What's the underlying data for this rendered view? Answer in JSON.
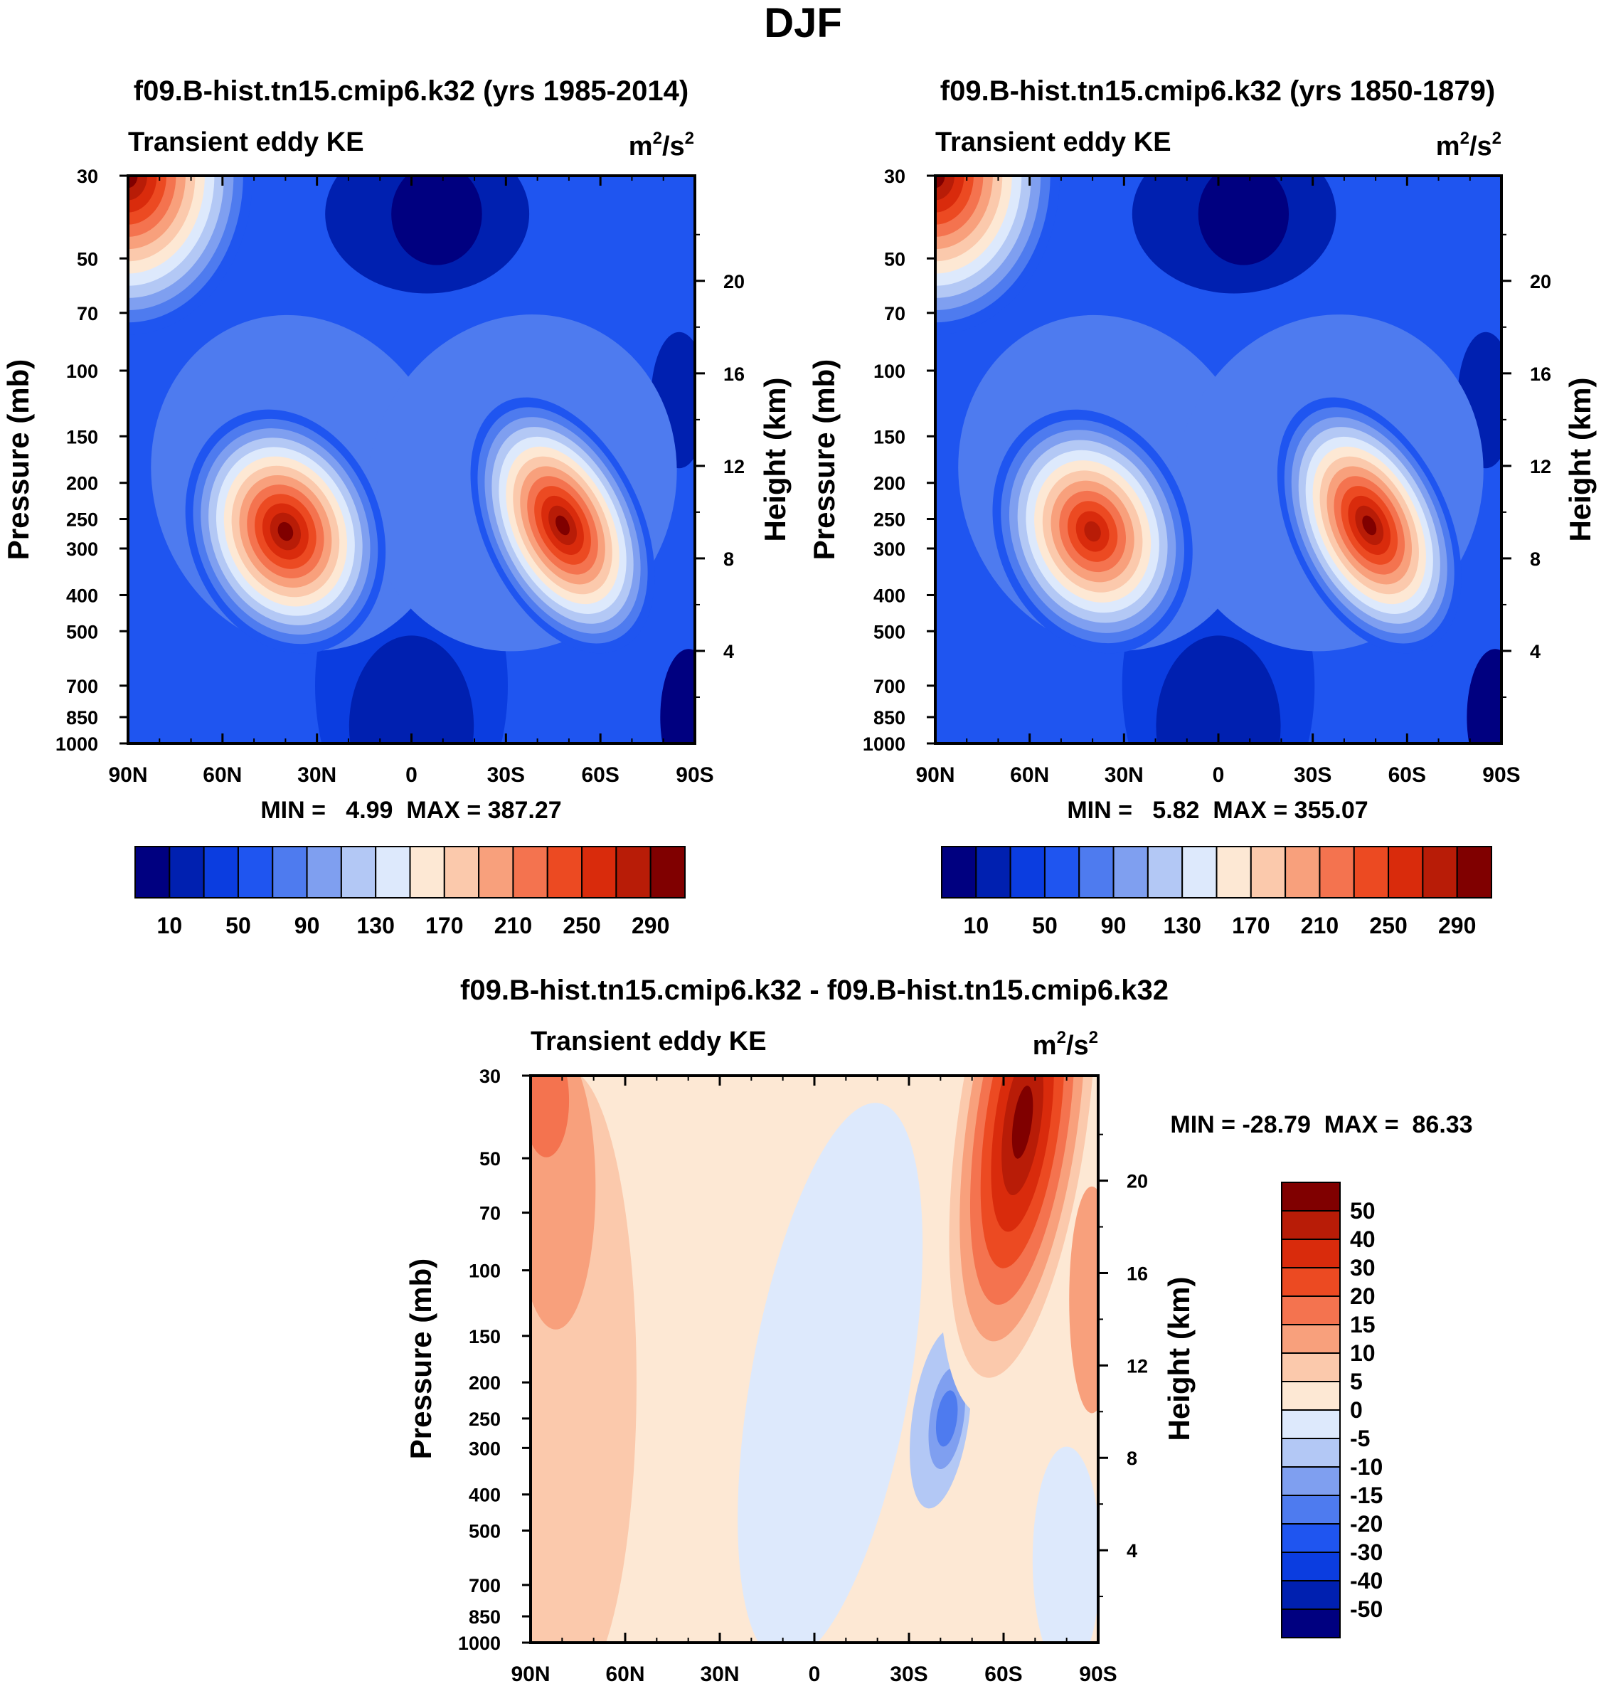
{
  "figure_title": "DJF",
  "colors": {
    "ke_scale": [
      "#000080",
      "#0020b0",
      "#0b3de0",
      "#1f55f0",
      "#4e7bef",
      "#7f9ff0",
      "#b3c8f5",
      "#dde9fc",
      "#fde8d4",
      "#fbc9ac",
      "#f8a07c",
      "#f4734f",
      "#ec4a22",
      "#d92b0c",
      "#b81c07",
      "#800000"
    ],
    "diff_scale": [
      "#000080",
      "#0020b0",
      "#0b3de0",
      "#1f55f0",
      "#4e7bef",
      "#7f9ff0",
      "#b3c8f5",
      "#dde9fc",
      "#fde8d4",
      "#fbc9ac",
      "#f8a07c",
      "#f4734f",
      "#ec4a22",
      "#d92b0c",
      "#b81c07",
      "#800000"
    ]
  },
  "chart_data": [
    {
      "id": "panel1",
      "type": "contour",
      "title": "f09.B-hist.tn15.cmip6.k32 (yrs 1985-2014)",
      "left_label": "Transient eddy KE",
      "units_base": "m",
      "units_mid": "/s",
      "units_exp": "2",
      "ylabel": "Pressure (mb)",
      "ylabel_right": "Height (km)",
      "x_ticks": [
        "90N",
        "60N",
        "30N",
        "0",
        "30S",
        "60S",
        "90S"
      ],
      "y_ticks": [
        "30",
        "50",
        "70",
        "100",
        "150",
        "200",
        "250",
        "300",
        "400",
        "500",
        "700",
        "850",
        "1000"
      ],
      "y_ticks_right": [
        "20",
        "16",
        "12",
        "8",
        "4"
      ],
      "stats": "MIN =   4.99  MAX = 387.27",
      "min": 4.99,
      "max": 387.27,
      "colorbar": {
        "orientation": "horizontal",
        "labels": [
          "10",
          "50",
          "90",
          "130",
          "170",
          "210",
          "250",
          "290"
        ]
      },
      "features": [
        {
          "lat": -40,
          "p": 270,
          "peak": 320
        },
        {
          "lat": 50,
          "p": 250,
          "peak": 387
        },
        {
          "lat": -85,
          "p": 30,
          "peak": 310
        }
      ]
    },
    {
      "id": "panel2",
      "type": "contour",
      "title": "f09.B-hist.tn15.cmip6.k32 (yrs 1850-1879)",
      "left_label": "Transient eddy KE",
      "units_base": "m",
      "units_mid": "/s",
      "units_exp": "2",
      "ylabel": "Pressure (mb)",
      "ylabel_right": "Height (km)",
      "x_ticks": [
        "90N",
        "60N",
        "30N",
        "0",
        "30S",
        "60S",
        "90S"
      ],
      "y_ticks": [
        "30",
        "50",
        "70",
        "100",
        "150",
        "200",
        "250",
        "300",
        "400",
        "500",
        "700",
        "850",
        "1000"
      ],
      "y_ticks_right": [
        "20",
        "16",
        "12",
        "8",
        "4"
      ],
      "stats": "MIN =   5.82  MAX = 355.07",
      "min": 5.82,
      "max": 355.07,
      "colorbar": {
        "orientation": "horizontal",
        "labels": [
          "10",
          "50",
          "90",
          "130",
          "170",
          "210",
          "250",
          "290"
        ]
      },
      "features": [
        {
          "lat": -40,
          "p": 270,
          "peak": 300
        },
        {
          "lat": 50,
          "p": 260,
          "peak": 355
        },
        {
          "lat": -85,
          "p": 30,
          "peak": 300
        }
      ]
    },
    {
      "id": "diff",
      "type": "contour",
      "title": "f09.B-hist.tn15.cmip6.k32 - f09.B-hist.tn15.cmip6.k32",
      "left_label": "Transient eddy KE",
      "units_base": "m",
      "units_mid": "/s",
      "units_exp": "2",
      "ylabel": "Pressure (mb)",
      "ylabel_right": "Height (km)",
      "x_ticks": [
        "90N",
        "60N",
        "30N",
        "0",
        "30S",
        "60S",
        "90S"
      ],
      "y_ticks": [
        "30",
        "50",
        "70",
        "100",
        "150",
        "200",
        "250",
        "300",
        "400",
        "500",
        "700",
        "850",
        "1000"
      ],
      "y_ticks_right": [
        "20",
        "16",
        "12",
        "8",
        "4"
      ],
      "stats": "MIN = -28.79  MAX =  86.33",
      "min": -28.79,
      "max": 86.33,
      "colorbar": {
        "orientation": "vertical",
        "labels": [
          "50",
          "40",
          "30",
          "20",
          "15",
          "10",
          "5",
          "0",
          "-5",
          "-10",
          "-15",
          "-20",
          "-30",
          "-40",
          "-50"
        ]
      },
      "features": [
        {
          "lat": 65,
          "p": 35,
          "peak": 86
        },
        {
          "lat": 45,
          "p": 250,
          "peak": -29
        },
        {
          "lat": -85,
          "p": 40,
          "peak": 25
        }
      ]
    }
  ]
}
